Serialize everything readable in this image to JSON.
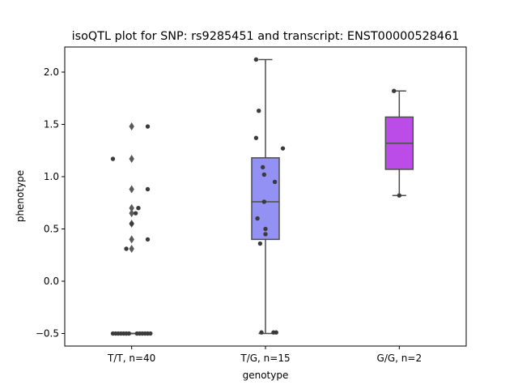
{
  "chart_data": {
    "type": "box",
    "title": "isoQTL plot for SNP: rs9285451 and transcript: ENST00000528461",
    "xlabel": "genotype",
    "ylabel": "phenotype",
    "ylim": [
      -0.62,
      2.24
    ],
    "yticks": [
      -0.5,
      0.0,
      0.5,
      1.0,
      1.5,
      2.0
    ],
    "ytick_labels": [
      "−0.5",
      "0.0",
      "0.5",
      "1.0",
      "1.5",
      "2.0"
    ],
    "categories": [
      "T/T, n=40",
      "T/G, n=15",
      "G/G, n=2"
    ],
    "colors": {
      "box_tg": "#9391f4",
      "box_gg": "#bb4ce8",
      "line": "#4d4d4d",
      "point": "#3b3b3b",
      "flier": "#5a5a5a"
    },
    "boxes": [
      {
        "category": "T/T, n=40",
        "q1": -0.5,
        "median": -0.5,
        "q3": -0.5,
        "whisker_low": -0.5,
        "whisker_high": -0.5,
        "fliers": [
          1.48,
          1.17,
          0.88,
          0.7,
          0.65,
          0.55,
          0.4,
          0.31
        ]
      },
      {
        "category": "T/G, n=15",
        "q1": 0.4,
        "median": 0.76,
        "q3": 1.18,
        "whisker_low": -0.5,
        "whisker_high": 2.12,
        "fliers": []
      },
      {
        "category": "G/G, n=2",
        "q1": 1.07,
        "median": 1.32,
        "q3": 1.57,
        "whisker_low": 0.82,
        "whisker_high": 1.82,
        "fliers": []
      }
    ],
    "points": [
      {
        "cat": 0,
        "dx": 0.12,
        "y": 1.48
      },
      {
        "cat": 0,
        "dx": -0.14,
        "y": 1.17
      },
      {
        "cat": 0,
        "dx": 0.12,
        "y": 0.88
      },
      {
        "cat": 0,
        "dx": 0.05,
        "y": 0.7
      },
      {
        "cat": 0,
        "dx": 0.03,
        "y": 0.65
      },
      {
        "cat": 0,
        "dx": 0.0,
        "y": 0.55
      },
      {
        "cat": 0,
        "dx": 0.12,
        "y": 0.4
      },
      {
        "cat": 0,
        "dx": -0.04,
        "y": 0.31
      },
      {
        "cat": 0,
        "dx": -0.14,
        "y": -0.5
      },
      {
        "cat": 0,
        "dx": -0.12,
        "y": -0.5
      },
      {
        "cat": 0,
        "dx": -0.1,
        "y": -0.5
      },
      {
        "cat": 0,
        "dx": -0.08,
        "y": -0.5
      },
      {
        "cat": 0,
        "dx": -0.06,
        "y": -0.5
      },
      {
        "cat": 0,
        "dx": -0.04,
        "y": -0.5
      },
      {
        "cat": 0,
        "dx": -0.02,
        "y": -0.5
      },
      {
        "cat": 0,
        "dx": 0.04,
        "y": -0.5
      },
      {
        "cat": 0,
        "dx": 0.06,
        "y": -0.5
      },
      {
        "cat": 0,
        "dx": 0.08,
        "y": -0.5
      },
      {
        "cat": 0,
        "dx": 0.1,
        "y": -0.5
      },
      {
        "cat": 0,
        "dx": 0.12,
        "y": -0.5
      },
      {
        "cat": 0,
        "dx": 0.14,
        "y": -0.5
      },
      {
        "cat": 1,
        "dx": -0.07,
        "y": 2.12
      },
      {
        "cat": 1,
        "dx": -0.05,
        "y": 1.63
      },
      {
        "cat": 1,
        "dx": -0.07,
        "y": 1.37
      },
      {
        "cat": 1,
        "dx": 0.13,
        "y": 1.27
      },
      {
        "cat": 1,
        "dx": -0.02,
        "y": 1.09
      },
      {
        "cat": 1,
        "dx": -0.01,
        "y": 1.02
      },
      {
        "cat": 1,
        "dx": 0.07,
        "y": 0.95
      },
      {
        "cat": 1,
        "dx": -0.01,
        "y": 0.76
      },
      {
        "cat": 1,
        "dx": -0.06,
        "y": 0.6
      },
      {
        "cat": 1,
        "dx": 0.0,
        "y": 0.5
      },
      {
        "cat": 1,
        "dx": 0.0,
        "y": 0.45
      },
      {
        "cat": 1,
        "dx": -0.04,
        "y": 0.36
      },
      {
        "cat": 1,
        "dx": -0.03,
        "y": -0.49
      },
      {
        "cat": 1,
        "dx": 0.06,
        "y": -0.49
      },
      {
        "cat": 1,
        "dx": 0.08,
        "y": -0.49
      },
      {
        "cat": 2,
        "dx": -0.04,
        "y": 1.82
      },
      {
        "cat": 2,
        "dx": 0.0,
        "y": 0.82
      }
    ]
  }
}
